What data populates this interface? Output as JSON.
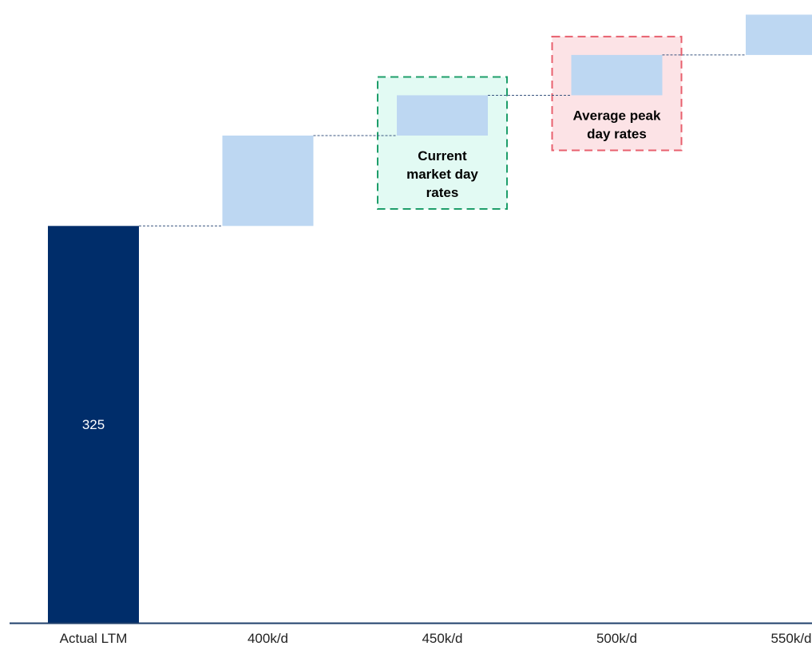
{
  "chart_data": {
    "type": "bar",
    "subtype": "waterfall",
    "categories": [
      "Actual LTM",
      "400k/d",
      "450k/d",
      "500k/d",
      "550k/d"
    ],
    "bars": [
      {
        "category": "Actual LTM",
        "kind": "total",
        "base": 0,
        "value": 325,
        "label": "325"
      },
      {
        "category": "400k/d",
        "kind": "increment",
        "base": 325,
        "value": 74,
        "label": ""
      },
      {
        "category": "450k/d",
        "kind": "increment",
        "base": 399,
        "value": 33,
        "label": ""
      },
      {
        "category": "500k/d",
        "kind": "increment",
        "base": 432,
        "value": 33,
        "label": ""
      },
      {
        "category": "550k/d",
        "kind": "increment",
        "base": 465,
        "value": 33,
        "label": ""
      }
    ],
    "ylim": [
      0,
      510
    ],
    "grid": false,
    "connectors": "dashed",
    "annotations": [
      {
        "text_lines": [
          "Current",
          "market day",
          "rates"
        ],
        "category": "450k/d",
        "style": "green-dashed"
      },
      {
        "text_lines": [
          "Average peak",
          "day rates"
        ],
        "category": "500k/d",
        "style": "red-dashed"
      }
    ]
  },
  "colors": {
    "total_bar": "#002D6A",
    "increment_bar": "#BDD7F2",
    "axis_line": "#1F3F6B",
    "connector": "#3A5680",
    "tick_text": "#222222",
    "total_label_text": "#FFFFFF",
    "annotation_green_border": "#1E9E6A",
    "annotation_green_fill": "#E2FAF3",
    "annotation_red_border": "#E8606E",
    "annotation_red_fill": "#FCE3E6",
    "annotation_text": "#000000"
  }
}
